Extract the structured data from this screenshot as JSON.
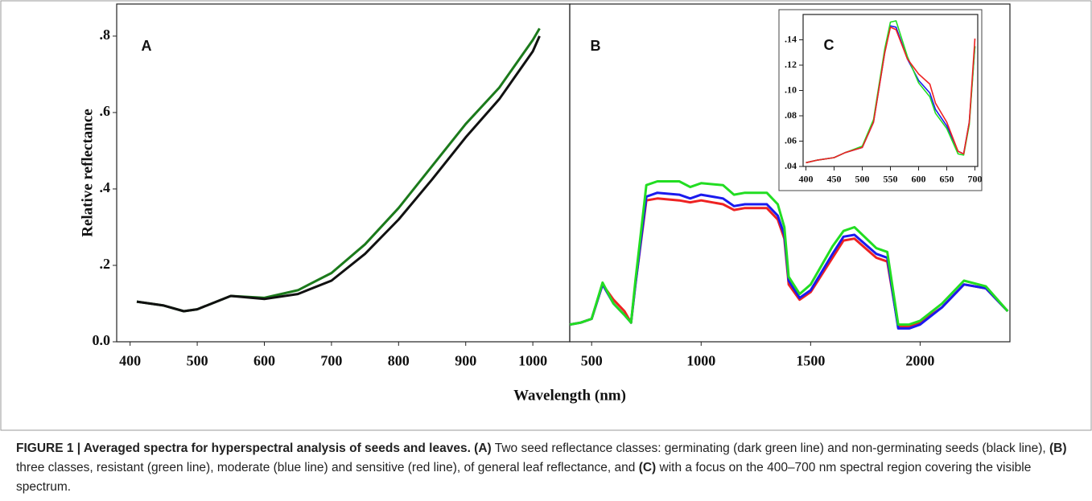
{
  "chart_data": [
    {
      "type": "line",
      "title": "A",
      "ylabel": "Relative reflectance",
      "x": [
        410,
        450,
        480,
        500,
        550,
        600,
        650,
        700,
        750,
        800,
        850,
        900,
        950,
        1000,
        1010
      ],
      "series": [
        {
          "color": "#1b7a1b",
          "values": [
            0.105,
            0.095,
            0.08,
            0.085,
            0.12,
            0.115,
            0.135,
            0.18,
            0.255,
            0.35,
            0.46,
            0.57,
            0.665,
            0.79,
            0.82
          ]
        },
        {
          "color": "#111111",
          "values": [
            0.105,
            0.095,
            0.08,
            0.085,
            0.12,
            0.112,
            0.125,
            0.16,
            0.23,
            0.32,
            0.425,
            0.535,
            0.635,
            0.76,
            0.8
          ]
        }
      ],
      "xlim": [
        380,
        1055
      ],
      "xticks": [
        400,
        500,
        600,
        700,
        800,
        900,
        1000
      ],
      "ylim": [
        0,
        0.884
      ],
      "yticks": [
        {
          "value": 0,
          "label": "0.0"
        },
        {
          "value": 0.2,
          "label": ".2"
        },
        {
          "value": 0.4,
          "label": ".4"
        },
        {
          "value": 0.6,
          "label": ".6"
        },
        {
          "value": 0.8,
          "label": ".8"
        }
      ]
    },
    {
      "type": "line",
      "title": "B",
      "x": [
        400,
        450,
        500,
        550,
        600,
        650,
        680,
        700,
        750,
        800,
        900,
        950,
        1000,
        1100,
        1150,
        1200,
        1300,
        1350,
        1380,
        1400,
        1450,
        1500,
        1600,
        1650,
        1700,
        1800,
        1850,
        1900,
        1950,
        2000,
        2100,
        2200,
        2300,
        2400
      ],
      "series": [
        {
          "color": "#ee2222",
          "values": [
            0.045,
            0.05,
            0.06,
            0.15,
            0.11,
            0.08,
            0.05,
            0.15,
            0.37,
            0.375,
            0.37,
            0.365,
            0.37,
            0.36,
            0.345,
            0.35,
            0.35,
            0.32,
            0.27,
            0.15,
            0.11,
            0.13,
            0.22,
            0.265,
            0.27,
            0.22,
            0.21,
            0.04,
            0.04,
            0.05,
            0.09,
            0.15,
            0.14,
            0.08
          ]
        },
        {
          "color": "#1a1aee",
          "values": [
            0.045,
            0.05,
            0.06,
            0.15,
            0.1,
            0.07,
            0.05,
            0.15,
            0.38,
            0.39,
            0.385,
            0.375,
            0.385,
            0.375,
            0.355,
            0.36,
            0.36,
            0.33,
            0.28,
            0.16,
            0.115,
            0.135,
            0.23,
            0.275,
            0.28,
            0.23,
            0.22,
            0.035,
            0.035,
            0.045,
            0.09,
            0.15,
            0.14,
            0.08
          ]
        },
        {
          "color": "#22dd22",
          "values": [
            0.045,
            0.05,
            0.06,
            0.155,
            0.1,
            0.07,
            0.05,
            0.16,
            0.41,
            0.42,
            0.42,
            0.405,
            0.415,
            0.41,
            0.385,
            0.39,
            0.39,
            0.36,
            0.3,
            0.17,
            0.125,
            0.15,
            0.25,
            0.29,
            0.3,
            0.245,
            0.235,
            0.045,
            0.045,
            0.055,
            0.1,
            0.16,
            0.145,
            0.08
          ]
        }
      ],
      "xlim": [
        400,
        2410
      ],
      "xticks": [
        500,
        1000,
        1500,
        2000
      ],
      "ylim": [
        0,
        0.884
      ]
    },
    {
      "type": "line",
      "title": "C",
      "x": [
        400,
        420,
        450,
        470,
        500,
        520,
        540,
        550,
        560,
        580,
        600,
        620,
        630,
        650,
        670,
        680,
        690,
        700
      ],
      "series": [
        {
          "color": "#1a1aee",
          "values": [
            0.043,
            0.045,
            0.047,
            0.051,
            0.055,
            0.075,
            0.13,
            0.151,
            0.15,
            0.125,
            0.108,
            0.098,
            0.085,
            0.072,
            0.052,
            0.05,
            0.075,
            0.135
          ]
        },
        {
          "color": "#22dd22",
          "values": [
            0.043,
            0.045,
            0.047,
            0.051,
            0.056,
            0.077,
            0.133,
            0.154,
            0.155,
            0.127,
            0.106,
            0.095,
            0.082,
            0.07,
            0.05,
            0.049,
            0.073,
            0.135
          ]
        },
        {
          "color": "#ee2222",
          "values": [
            0.043,
            0.045,
            0.047,
            0.051,
            0.055,
            0.075,
            0.13,
            0.15,
            0.148,
            0.125,
            0.113,
            0.105,
            0.09,
            0.075,
            0.052,
            0.05,
            0.075,
            0.141
          ]
        }
      ],
      "xlim": [
        395,
        705
      ],
      "xticks": [
        400,
        450,
        500,
        550,
        600,
        650,
        700
      ],
      "ylim": [
        0.04,
        0.16
      ],
      "yticks": [
        {
          "value": 0.04,
          "label": ".04"
        },
        {
          "value": 0.06,
          "label": ".06"
        },
        {
          "value": 0.08,
          "label": ".08"
        },
        {
          "value": 0.1,
          "label": ".10"
        },
        {
          "value": 0.12,
          "label": ".12"
        },
        {
          "value": 0.14,
          "label": ".14"
        }
      ]
    }
  ],
  "xlabel": "Wavelength (nm)",
  "caption": [
    {
      "text": "FIGURE 1 | Averaged spectra for hyperspectral analysis of seeds and leaves. (A)",
      "bold": true
    },
    {
      "text": " Two seed reflectance classes: germinating (dark green line) and non-germinating seeds (black line), ",
      "bold": false
    },
    {
      "text": "(B)",
      "bold": true
    },
    {
      "text": " three classes, resistant (green line), moderate (blue line) and sensitive (red line), of general leaf reflectance, and ",
      "bold": false
    },
    {
      "text": "(C)",
      "bold": true
    },
    {
      "text": " with a focus on the 400–700 nm spectral region covering the visible spectrum.",
      "bold": false
    }
  ]
}
